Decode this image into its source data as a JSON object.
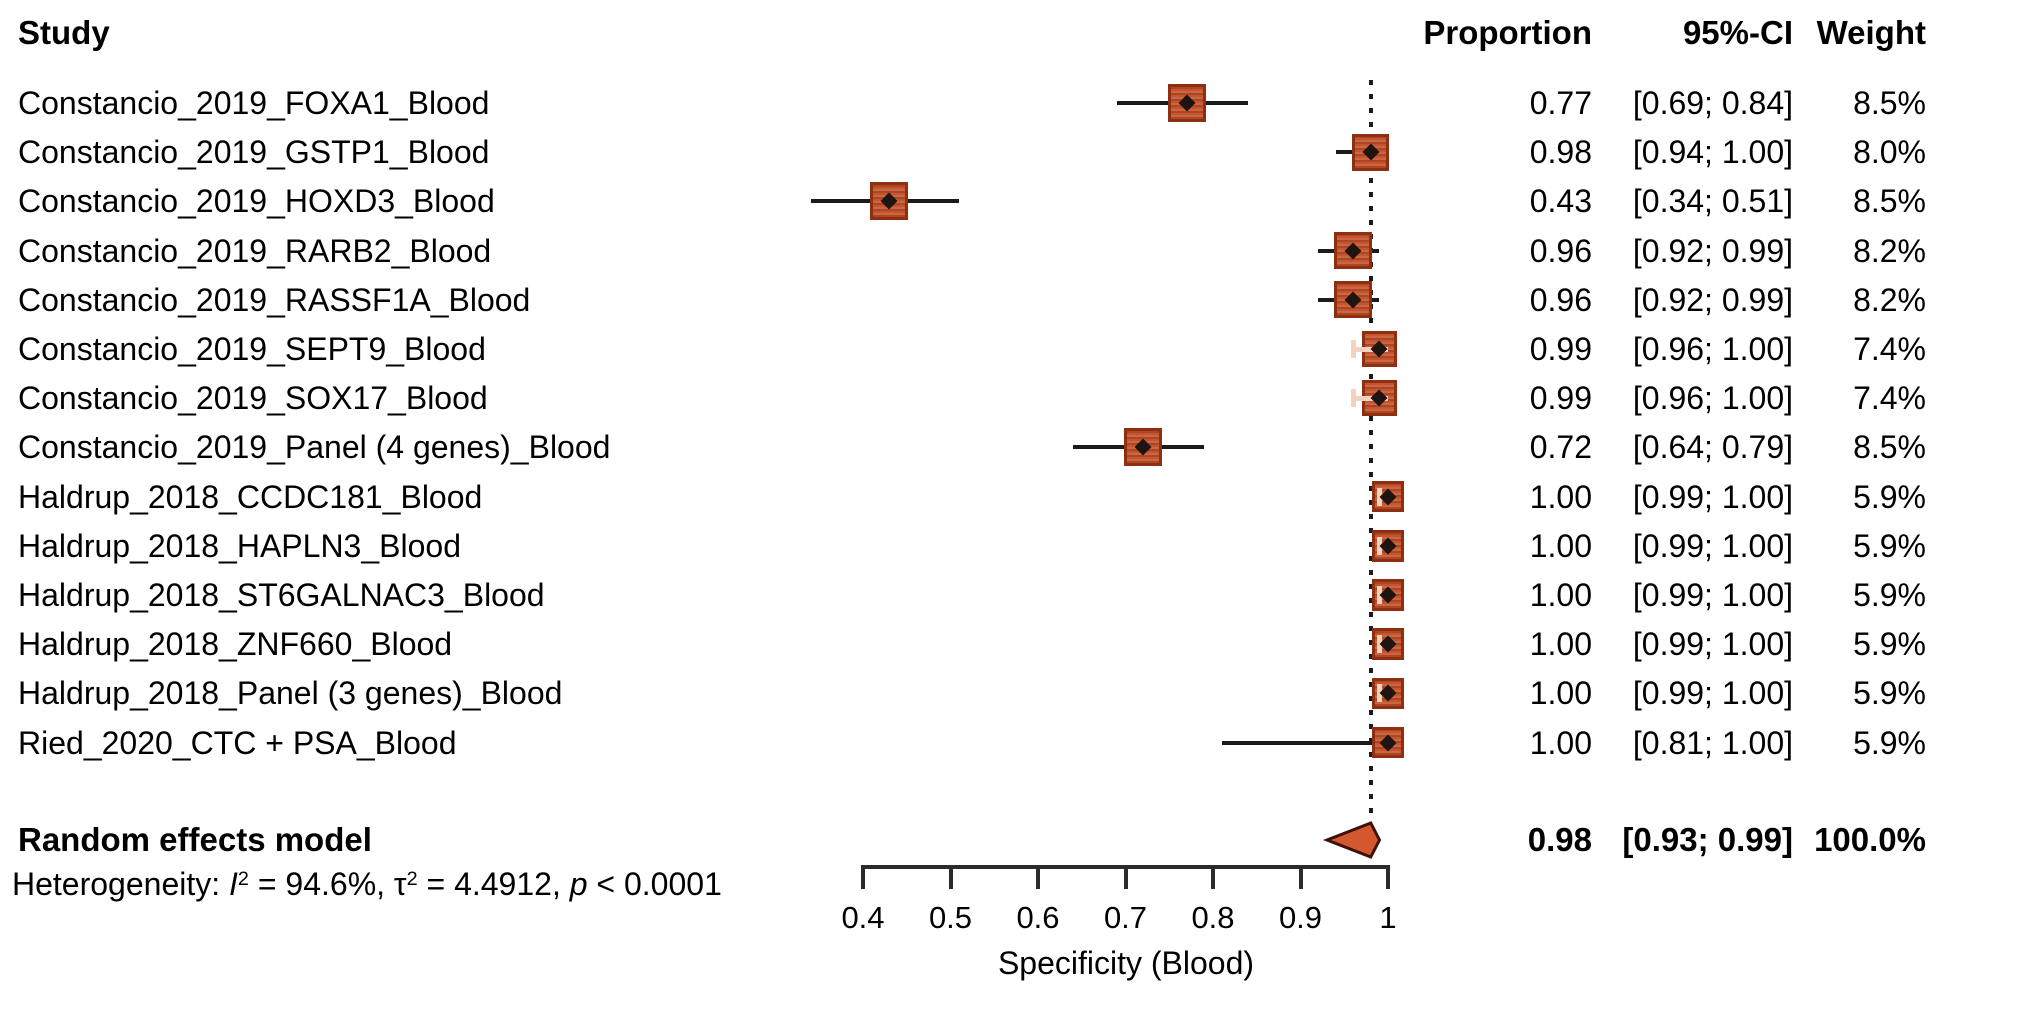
{
  "colors": {
    "square_fill": "#c4552e",
    "square_border": "#8e2f12",
    "square_inner_mark": "#f3d3c0",
    "point_marker": "#1f1410",
    "diamond_fill": "#d4582f",
    "diamond_border": "#3c120a",
    "ci_line": "#1b1b1b",
    "reference_line": "#1b1b1b",
    "axis": "#2b2b2b",
    "text": "#000000"
  },
  "chart_data": {
    "type": "forest",
    "columns": {
      "study": "Study",
      "proportion": "Proportion",
      "ci": "95%-CI",
      "weight": "Weight"
    },
    "axis": {
      "label": "Specificity (Blood)",
      "min": 0.4,
      "max": 1.0,
      "tick_labels": [
        "0.4",
        "0.5",
        "0.6",
        "0.7",
        "0.8",
        "0.9",
        "1"
      ],
      "tick_values": [
        0.4,
        0.5,
        0.6,
        0.7,
        0.8,
        0.9,
        1.0
      ]
    },
    "reference_line_value": 0.98,
    "rows": [
      {
        "study": "Constancio_2019_FOXA1_Blood",
        "proportion": 0.77,
        "ci_low": 0.69,
        "ci_high": 0.84,
        "proportion_label": "0.77",
        "ci_label": "[0.69; 0.84]",
        "weight_value": 8.5,
        "weight_label": "8.5%"
      },
      {
        "study": "Constancio_2019_GSTP1_Blood",
        "proportion": 0.98,
        "ci_low": 0.94,
        "ci_high": 1.0,
        "proportion_label": "0.98",
        "ci_label": "[0.94; 1.00]",
        "weight_value": 8.0,
        "weight_label": "8.0%"
      },
      {
        "study": "Constancio_2019_HOXD3_Blood",
        "proportion": 0.43,
        "ci_low": 0.34,
        "ci_high": 0.51,
        "proportion_label": "0.43",
        "ci_label": "[0.34; 0.51]",
        "weight_value": 8.5,
        "weight_label": "8.5%"
      },
      {
        "study": "Constancio_2019_RARB2_Blood",
        "proportion": 0.96,
        "ci_low": 0.92,
        "ci_high": 0.99,
        "proportion_label": "0.96",
        "ci_label": "[0.92; 0.99]",
        "weight_value": 8.2,
        "weight_label": "8.2%"
      },
      {
        "study": "Constancio_2019_RASSF1A_Blood",
        "proportion": 0.96,
        "ci_low": 0.92,
        "ci_high": 0.99,
        "proportion_label": "0.96",
        "ci_label": "[0.92; 0.99]",
        "weight_value": 8.2,
        "weight_label": "8.2%"
      },
      {
        "study": "Constancio_2019_SEPT9_Blood",
        "proportion": 0.99,
        "ci_low": 0.96,
        "ci_high": 1.0,
        "proportion_label": "0.99",
        "ci_label": "[0.96; 1.00]",
        "weight_value": 7.4,
        "weight_label": "7.4%"
      },
      {
        "study": "Constancio_2019_SOX17_Blood",
        "proportion": 0.99,
        "ci_low": 0.96,
        "ci_high": 1.0,
        "proportion_label": "0.99",
        "ci_label": "[0.96; 1.00]",
        "weight_value": 7.4,
        "weight_label": "7.4%"
      },
      {
        "study": "Constancio_2019_Panel (4 genes)_Blood",
        "proportion": 0.72,
        "ci_low": 0.64,
        "ci_high": 0.79,
        "proportion_label": "0.72",
        "ci_label": "[0.64; 0.79]",
        "weight_value": 8.5,
        "weight_label": "8.5%"
      },
      {
        "study": "Haldrup_2018_CCDC181_Blood",
        "proportion": 1.0,
        "ci_low": 0.99,
        "ci_high": 1.0,
        "proportion_label": "1.00",
        "ci_label": "[0.99; 1.00]",
        "weight_value": 5.9,
        "weight_label": "5.9%"
      },
      {
        "study": "Haldrup_2018_HAPLN3_Blood",
        "proportion": 1.0,
        "ci_low": 0.99,
        "ci_high": 1.0,
        "proportion_label": "1.00",
        "ci_label": "[0.99; 1.00]",
        "weight_value": 5.9,
        "weight_label": "5.9%"
      },
      {
        "study": "Haldrup_2018_ST6GALNAC3_Blood",
        "proportion": 1.0,
        "ci_low": 0.99,
        "ci_high": 1.0,
        "proportion_label": "1.00",
        "ci_label": "[0.99; 1.00]",
        "weight_value": 5.9,
        "weight_label": "5.9%"
      },
      {
        "study": "Haldrup_2018_ZNF660_Blood",
        "proportion": 1.0,
        "ci_low": 0.99,
        "ci_high": 1.0,
        "proportion_label": "1.00",
        "ci_label": "[0.99; 1.00]",
        "weight_value": 5.9,
        "weight_label": "5.9%"
      },
      {
        "study": "Haldrup_2018_Panel (3 genes)_Blood",
        "proportion": 1.0,
        "ci_low": 0.99,
        "ci_high": 1.0,
        "proportion_label": "1.00",
        "ci_label": "[0.99; 1.00]",
        "weight_value": 5.9,
        "weight_label": "5.9%"
      },
      {
        "study": "Ried_2020_CTC + PSA_Blood",
        "proportion": 1.0,
        "ci_low": 0.81,
        "ci_high": 1.0,
        "proportion_label": "1.00",
        "ci_label": "[0.81; 1.00]",
        "weight_value": 5.9,
        "weight_label": "5.9%"
      }
    ],
    "summary": {
      "label": "Random effects model",
      "proportion": 0.98,
      "ci_low": 0.93,
      "ci_high": 0.99,
      "proportion_label": "0.98",
      "ci_label": "[0.93; 0.99]",
      "weight_label": "100.0%"
    },
    "heterogeneity": {
      "prefix": "Heterogeneity: ",
      "i_symbol": "I",
      "i_sup": "2",
      "i_value": " = 94.6%, ",
      "tau_symbol": "τ",
      "tau_sup": "2",
      "tau_value": " = 4.4912, ",
      "p_symbol": "p",
      "p_value": " < 0.0001"
    }
  }
}
